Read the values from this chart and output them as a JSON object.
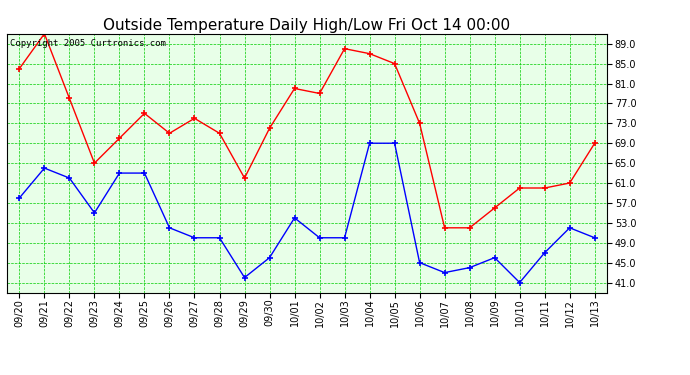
{
  "title": "Outside Temperature Daily High/Low Fri Oct 14 00:00",
  "copyright": "Copyright 2005 Curtronics.com",
  "x_labels": [
    "09/20",
    "09/21",
    "09/22",
    "09/23",
    "09/24",
    "09/25",
    "09/26",
    "09/27",
    "09/28",
    "09/29",
    "09/30",
    "10/01",
    "10/02",
    "10/03",
    "10/04",
    "10/05",
    "10/06",
    "10/07",
    "10/08",
    "10/09",
    "10/10",
    "10/11",
    "10/12",
    "10/13"
  ],
  "high_values": [
    84,
    91,
    78,
    65,
    70,
    75,
    71,
    74,
    71,
    62,
    72,
    80,
    79,
    88,
    87,
    85,
    73,
    52,
    52,
    56,
    60,
    60,
    61,
    69
  ],
  "low_values": [
    58,
    64,
    62,
    55,
    63,
    63,
    52,
    50,
    50,
    42,
    46,
    54,
    50,
    50,
    69,
    69,
    45,
    43,
    44,
    46,
    41,
    47,
    52,
    50
  ],
  "y_ticks": [
    41.0,
    45.0,
    49.0,
    53.0,
    57.0,
    61.0,
    65.0,
    69.0,
    73.0,
    77.0,
    81.0,
    85.0,
    89.0
  ],
  "y_min": 39,
  "y_max": 91,
  "high_color": "red",
  "low_color": "blue",
  "grid_color": "#00cc00",
  "bg_color": "white",
  "plot_bg_color": "#e8ffe8",
  "title_fontsize": 11,
  "axis_label_fontsize": 7,
  "copyright_fontsize": 6.5
}
